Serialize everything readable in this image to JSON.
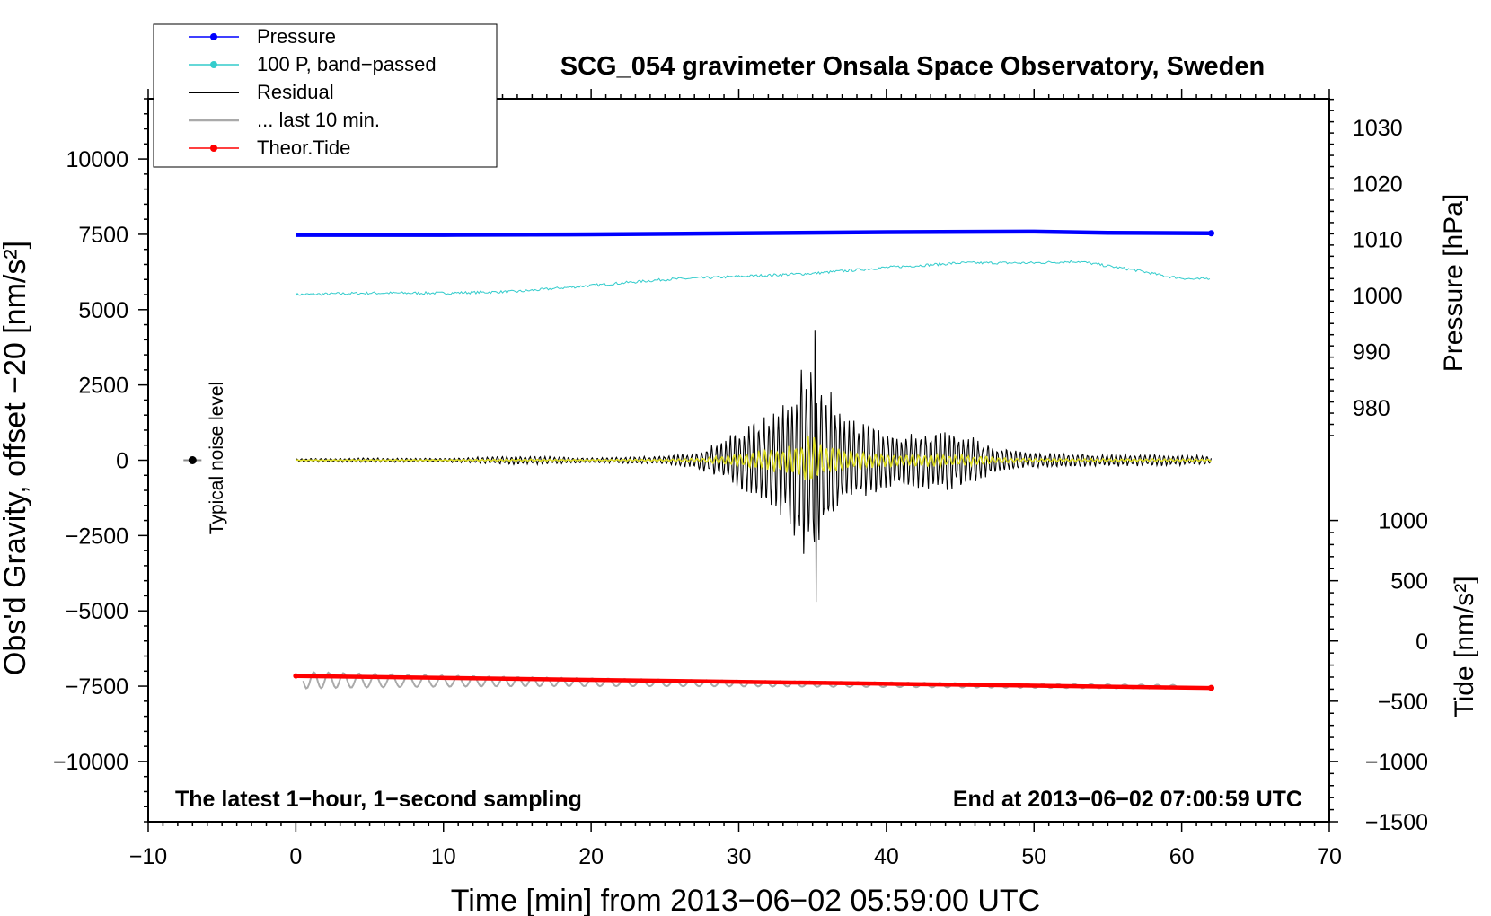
{
  "chart_data": {
    "type": "line",
    "title": "SCG_054 gravimeter Onsala Space Observatory, Sweden",
    "xlabel": "Time [min] from 2013−06−02 05:59:00 UTC",
    "ylabel_left": "Obs'd Gravity, offset −20 [nm/s²]",
    "ylabel_right_top": "Pressure [hPa]",
    "ylabel_right_bottom": "Tide [nm/s²]",
    "xlim": [
      -10,
      70
    ],
    "ylim_left": [
      -12000,
      12000
    ],
    "x_ticks": [
      {
        "value": -10,
        "label": "−10"
      },
      {
        "value": 0,
        "label": "0"
      },
      {
        "value": 10,
        "label": "10"
      },
      {
        "value": 20,
        "label": "20"
      },
      {
        "value": 30,
        "label": "30"
      },
      {
        "value": 40,
        "label": "40"
      },
      {
        "value": 50,
        "label": "50"
      },
      {
        "value": 60,
        "label": "60"
      },
      {
        "value": 70,
        "label": "70"
      }
    ],
    "left_ticks": [
      {
        "value": 10000,
        "label": "10000"
      },
      {
        "value": 7500,
        "label": "7500"
      },
      {
        "value": 5000,
        "label": "5000"
      },
      {
        "value": 2500,
        "label": "2500"
      },
      {
        "value": 0,
        "label": "0"
      },
      {
        "value": -2500,
        "label": "−2500"
      },
      {
        "value": -5000,
        "label": "−5000"
      },
      {
        "value": -7500,
        "label": "−7500"
      },
      {
        "value": -10000,
        "label": "−10000"
      }
    ],
    "pressure_axis": {
      "map": {
        "value_a": 1030,
        "left_a": 11050,
        "value_b": 980,
        "left_b": 1750
      },
      "ticks": [
        {
          "value": 1030,
          "label": "1030"
        },
        {
          "value": 1020,
          "label": "1020"
        },
        {
          "value": 1010,
          "label": "1010"
        },
        {
          "value": 1000,
          "label": "1000"
        },
        {
          "value": 990,
          "label": "990"
        },
        {
          "value": 980,
          "label": "980"
        }
      ]
    },
    "tide_axis": {
      "map": {
        "value_a": 1000,
        "left_a": -2000,
        "value_b": -1500,
        "left_b": -12000
      },
      "ticks": [
        {
          "value": 1000,
          "label": "1000"
        },
        {
          "value": 500,
          "label": "500"
        },
        {
          "value": 0,
          "label": "0"
        },
        {
          "value": -500,
          "label": "−500"
        },
        {
          "value": -1000,
          "label": "−1000"
        },
        {
          "value": -1500,
          "label": "−1500"
        }
      ]
    },
    "series": [
      {
        "name": "Pressure",
        "color": "#0000ff",
        "axis": "pressure",
        "x": [
          0,
          10,
          20,
          30,
          40,
          50,
          55,
          62
        ],
        "values": [
          1010.8,
          1010.8,
          1010.9,
          1011.1,
          1011.3,
          1011.4,
          1011.2,
          1011.1
        ]
      },
      {
        "name": "100 P, band−passed",
        "color": "#33cccc",
        "axis": "left",
        "x": [
          0,
          5,
          10,
          15,
          20,
          25,
          30,
          35,
          40,
          45,
          50,
          53,
          55,
          57,
          59,
          61,
          62
        ],
        "values": [
          5500,
          5550,
          5550,
          5600,
          5800,
          6000,
          6100,
          6200,
          6400,
          6550,
          6550,
          6600,
          6450,
          6300,
          6100,
          6000,
          6050
        ]
      },
      {
        "name": "Residual",
        "color": "#000000",
        "axis": "left",
        "envelope_x": [
          0,
          5,
          10,
          15,
          20,
          25,
          27,
          29,
          31,
          33,
          34,
          35,
          36,
          37,
          39,
          41,
          43,
          45,
          47,
          49,
          52,
          55,
          58,
          62
        ],
        "envelope_amplitude": [
          60,
          80,
          70,
          160,
          90,
          150,
          260,
          700,
          1350,
          2100,
          3000,
          4000,
          2600,
          1600,
          1200,
          900,
          1000,
          1000,
          550,
          300,
          250,
          220,
          200,
          160
        ],
        "peak_max": 4300,
        "peak_min": -4700
      },
      {
        "name": "... last 10 min.",
        "color": "#aaaaaa",
        "axis": "left",
        "x": [
          0.5,
          10,
          20,
          30,
          40,
          50,
          60
        ],
        "values": [
          -7300,
          -7330,
          -7370,
          -7410,
          -7450,
          -7490,
          -7520
        ]
      },
      {
        "name": "Theor.Tide",
        "color": "#ff0000",
        "axis": "tide",
        "x": [
          0,
          62
        ],
        "values": [
          -290,
          -390
        ]
      }
    ],
    "noise_level": {
      "x": -7,
      "value": 0,
      "label": "Typical noise level"
    },
    "annotations": {
      "left": "The latest 1−hour, 1−second sampling",
      "right": "End at 2013−06−02 07:00:59 UTC"
    },
    "legend_position": "top-left"
  }
}
